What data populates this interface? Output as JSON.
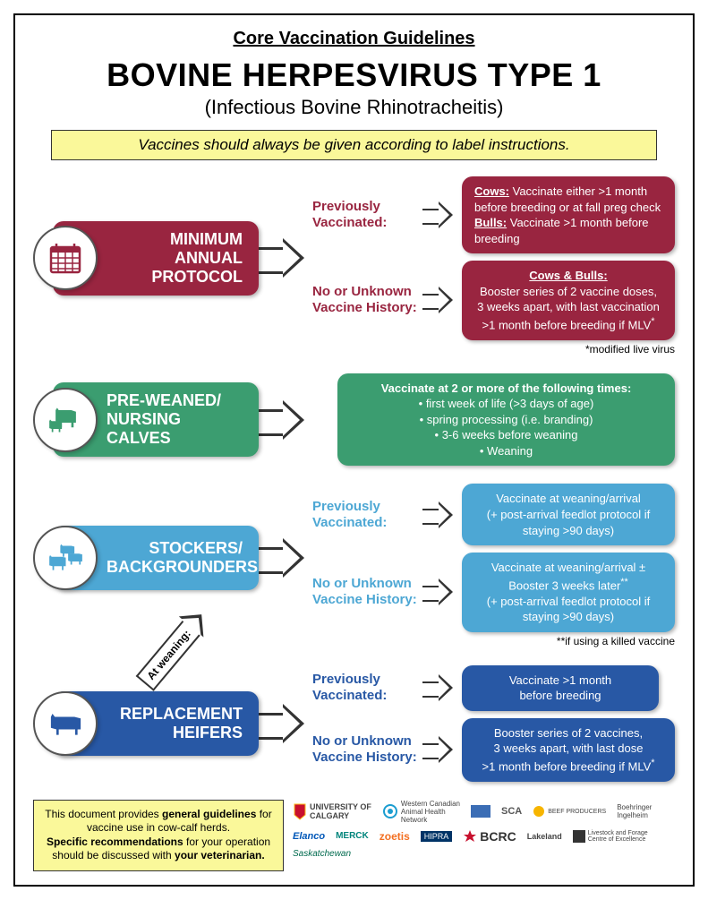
{
  "heading": "Core Vaccination Guidelines",
  "title": "BOVINE HERPESVIRUS TYPE 1",
  "subtitle": "(Infectious Bovine Rhinotracheitis)",
  "warning": "Vaccines should always be given according to label instructions.",
  "colors": {
    "maroon": "#992540",
    "green": "#3b9d70",
    "lightblue": "#4da7d4",
    "darkblue": "#2858a5",
    "yellow": "#faf89a"
  },
  "s1": {
    "label": "MINIMUM ANNUAL PROTOCOL",
    "sub1_label": "Previously Vaccinated:",
    "sub1_html": "<u><b>Cows:</b></u> Vaccinate either >1 month before breeding or at fall preg check<br><u><b>Bulls:</b></u> Vaccinate >1 month before breeding",
    "sub2_label": "No or Unknown Vaccine History:",
    "sub2_html": "<div class='center-text'><u><b>Cows & Bulls:</b></u><br>Booster series of 2 vaccine doses,<br>3 weeks apart, with last vaccination<br>>1 month before breeding if MLV<sup>*</sup></div>",
    "footnote": "*modified live virus"
  },
  "s2": {
    "label": "PRE-WEANED/ NURSING CALVES",
    "detail_html": "<div class='center-text'><b>Vaccinate at 2 or more of the following times:</b><br>• first week of life (>3 days of age)<br>• spring processing (i.e. branding)<br>• 3-6 weeks before weaning<br>• Weaning</div>"
  },
  "s3": {
    "label": "STOCKERS/ BACKGROUNDERS",
    "sub1_label": "Previously Vaccinated:",
    "sub1_html": "<div class='center-text'>Vaccinate at weaning/arrival<br>(+ post-arrival feedlot protocol if staying >90 days)</div>",
    "sub2_label": "No or Unknown Vaccine History:",
    "sub2_html": "<div class='center-text'>Vaccinate at weaning/arrival ±<br>Booster 3 weeks later<sup>**</sup><br>(+ post-arrival feedlot protocol if staying >90 days)</div>",
    "footnote": "**if using a killed vaccine",
    "at_weaning": "At weaning:"
  },
  "s4": {
    "label": "REPLACEMENT HEIFERS",
    "sub1_label": "Previously Vaccinated:",
    "sub1_html": "<div class='center-text'>Vaccinate >1 month<br>before breeding</div>",
    "sub2_label": "No or Unknown Vaccine History:",
    "sub2_html": "<div class='center-text'>Booster series of 2 vaccines,<br>3 weeks apart, with last dose<br>>1 month before breeding if MLV<sup>*</sup></div>"
  },
  "footer_note_html": "This document provides <b>general guidelines</b> for vaccine use in cow-calf herds.<br><b>Specific recommendations</b> for your operation should be discussed with <b>your veterinarian.</b>",
  "sponsors": [
    "UNIVERSITY OF CALGARY",
    "Western Canadian Animal Health Network",
    "SAAV",
    "SCA",
    "BEEF PRODUCERS",
    "Boehringer Ingelheim",
    "Elanco",
    "MERCK",
    "Zoetis",
    "HIPRA",
    "BCRC",
    "Lakeland",
    "Livestock and Forage Centre of Excellence",
    "Saskatchewan"
  ]
}
